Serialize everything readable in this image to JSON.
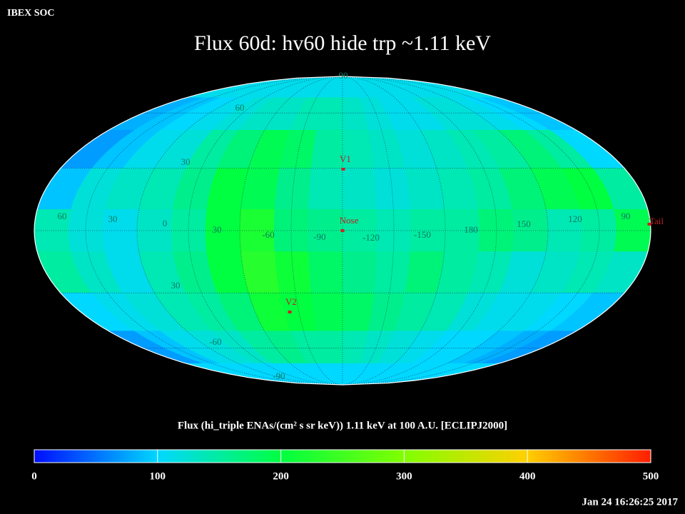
{
  "chart_data": {
    "type": "heatmap",
    "header": "IBEX SOC",
    "title": "Flux   60d: hv60 hide trp ~1.11 keV",
    "colorbar_title": "Flux (hi_triple ENAs/(cm² s sr keV))  1.11 keV at 100 A.U. [ECLIPJ2000]",
    "timestamp": "Jan 24 16:26:25 2017",
    "z": [
      [
        110,
        110,
        110,
        110,
        110,
        110,
        110,
        110,
        110,
        110,
        110,
        110,
        110,
        110,
        110,
        110,
        110,
        110
      ],
      [
        80,
        90,
        100,
        110,
        120,
        130,
        130,
        140,
        140,
        130,
        120,
        110,
        110,
        120,
        120,
        110,
        100,
        90
      ],
      [
        70,
        90,
        110,
        120,
        150,
        170,
        190,
        180,
        150,
        140,
        130,
        120,
        130,
        140,
        150,
        170,
        150,
        100
      ],
      [
        90,
        120,
        130,
        140,
        160,
        200,
        190,
        160,
        140,
        130,
        120,
        130,
        140,
        150,
        170,
        190,
        200,
        150
      ],
      [
        140,
        120,
        110,
        130,
        150,
        200,
        220,
        170,
        160,
        150,
        140,
        150,
        150,
        170,
        160,
        140,
        150,
        190
      ],
      [
        150,
        130,
        110,
        140,
        160,
        200,
        230,
        210,
        180,
        160,
        150,
        170,
        150,
        140,
        120,
        130,
        140,
        130
      ],
      [
        100,
        110,
        120,
        140,
        150,
        170,
        210,
        200,
        190,
        180,
        160,
        150,
        140,
        120,
        110,
        110,
        100,
        90
      ],
      [
        70,
        90,
        110,
        120,
        130,
        150,
        160,
        150,
        150,
        140,
        130,
        120,
        110,
        100,
        100,
        90,
        80,
        70
      ],
      [
        100,
        100,
        100,
        100,
        100,
        100,
        100,
        100,
        100,
        100,
        100,
        100,
        100,
        100,
        100,
        100,
        100,
        100
      ]
    ],
    "clim": [
      0,
      500
    ],
    "colorbar_ticks": [
      0,
      100,
      200,
      300,
      400,
      500
    ],
    "grid_labels": [
      "60",
      "30",
      "0",
      "30",
      "-60",
      "-90",
      "-120",
      "-150",
      "180",
      "150",
      "120",
      "90",
      "60",
      "30",
      "30",
      "-60",
      "90",
      "-90"
    ],
    "markers": [
      "V1",
      "Nose",
      "V2",
      "Tail"
    ]
  }
}
